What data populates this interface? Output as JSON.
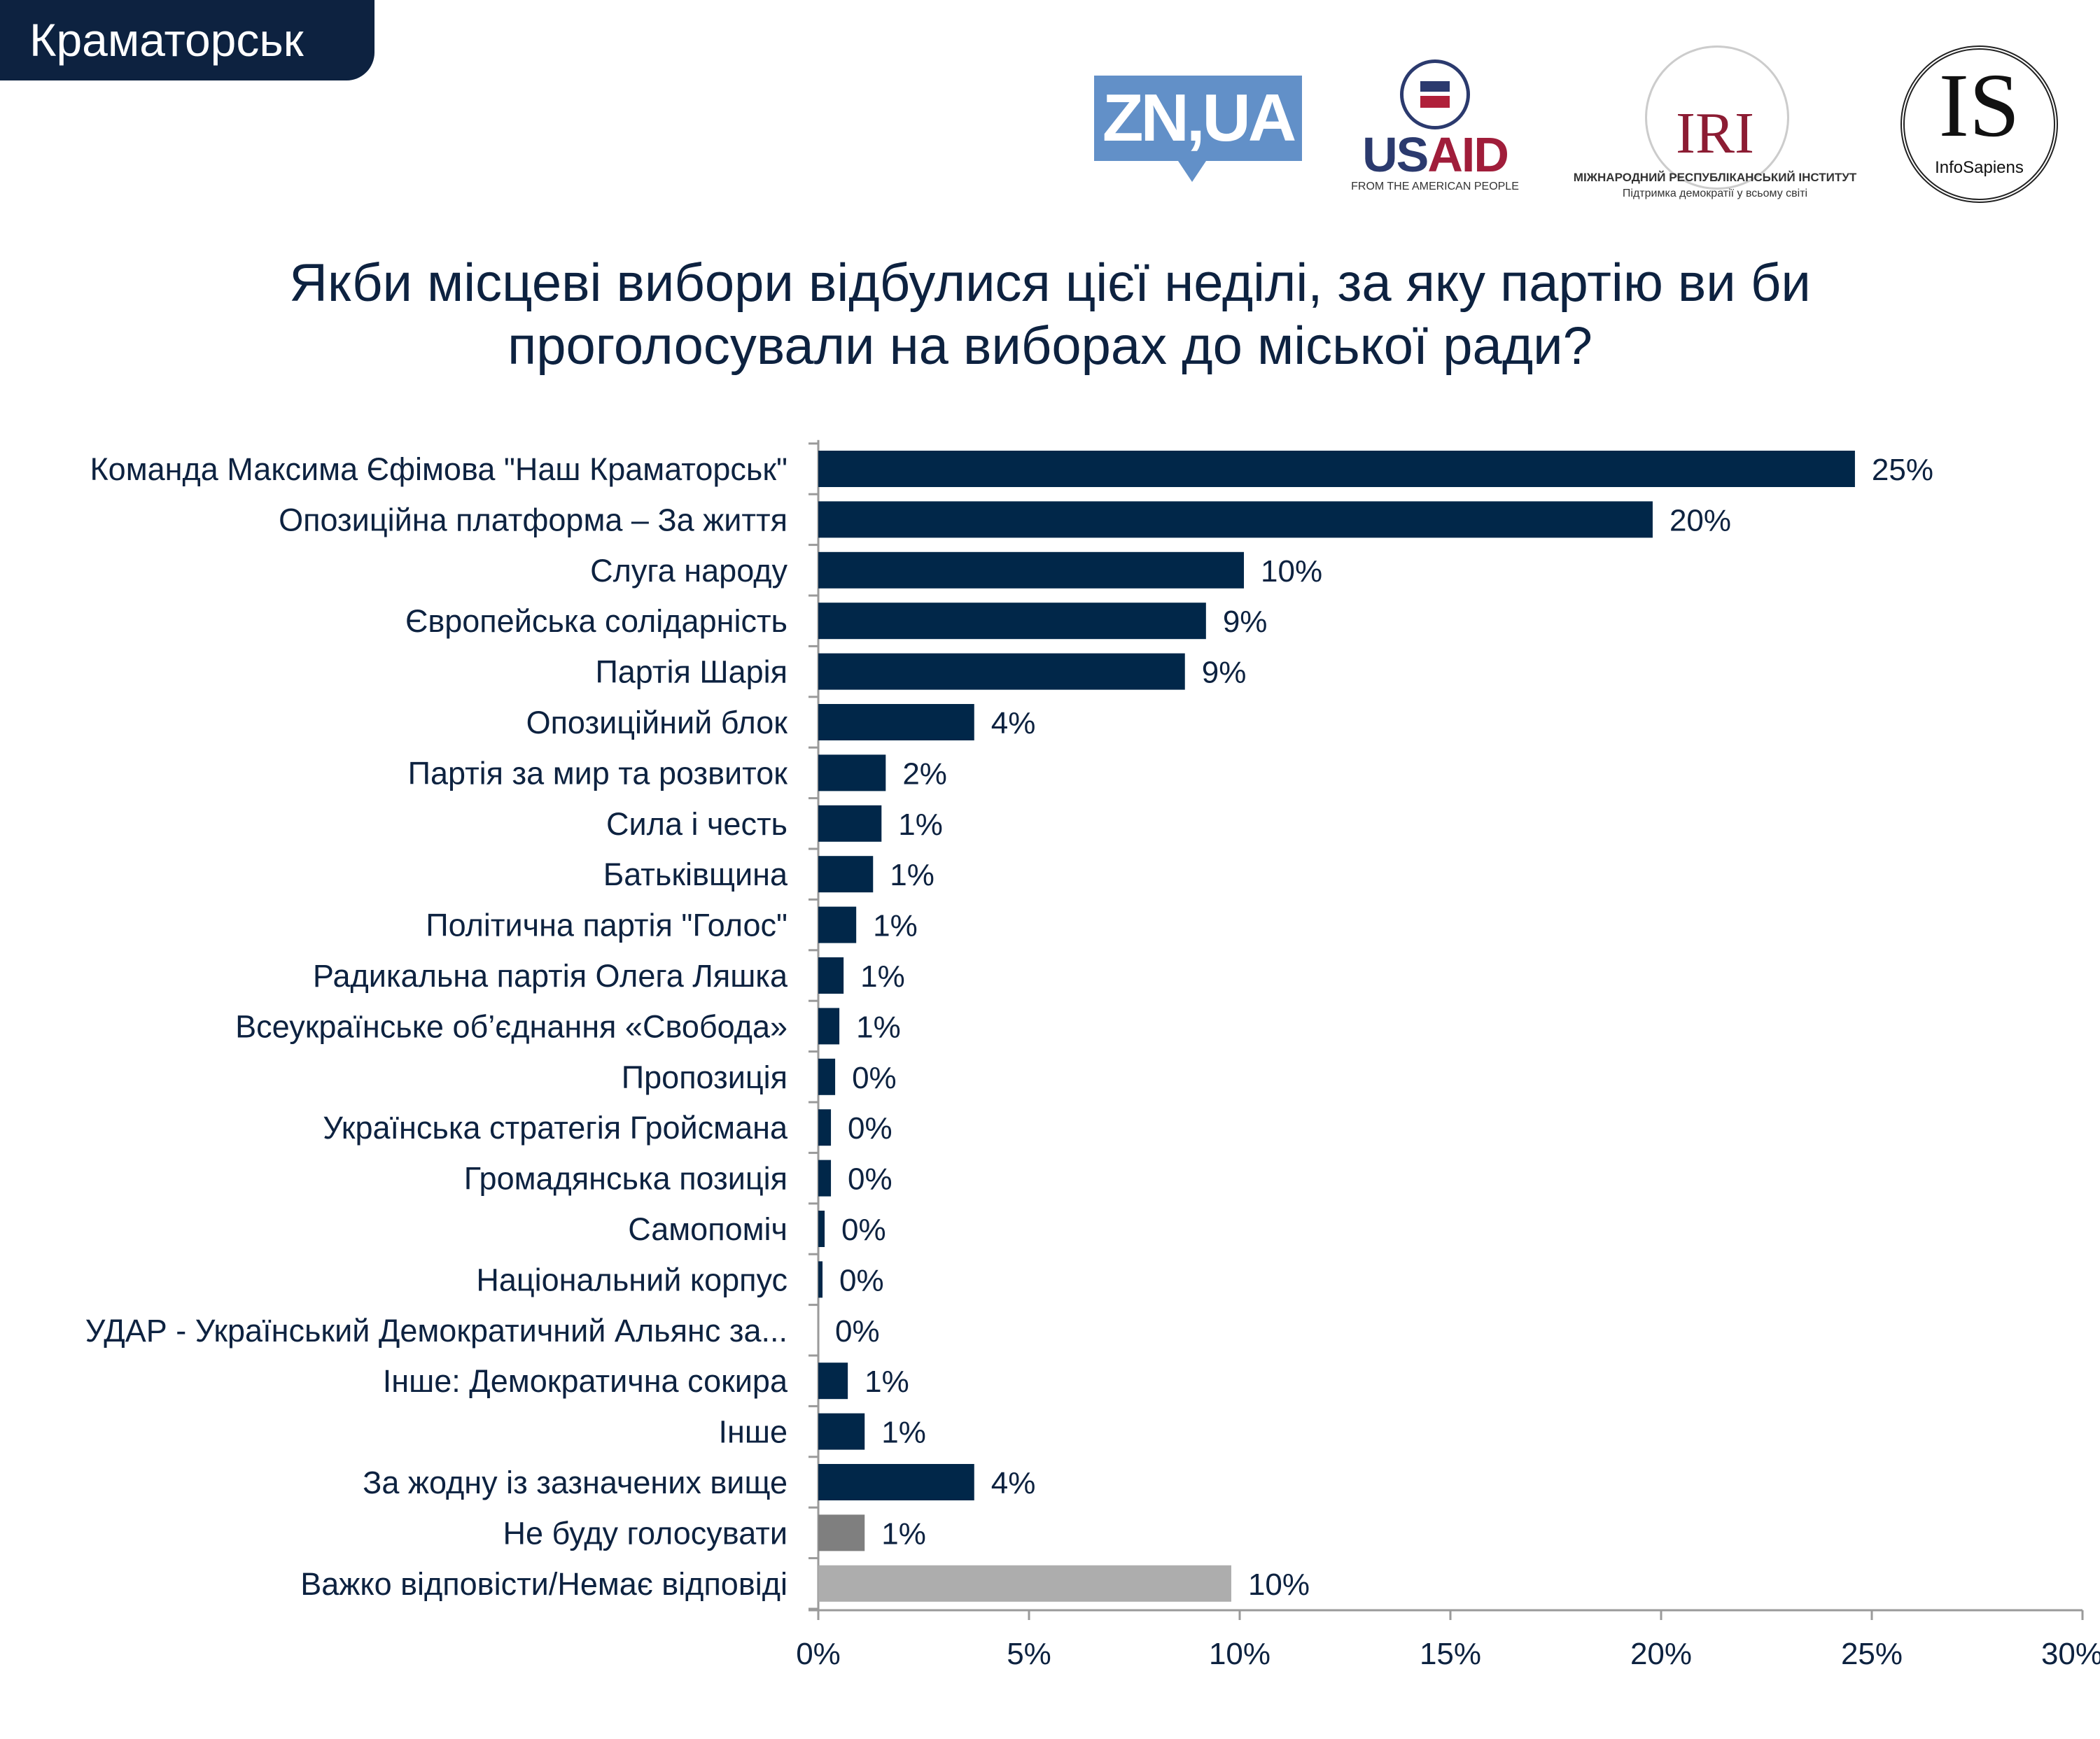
{
  "header": {
    "city": "Краматорськ"
  },
  "logos": {
    "zn": "ZN,UA",
    "usaid_us": "US",
    "usaid_aid": "AID",
    "usaid_sub": "FROM THE AMERICAN PEOPLE",
    "iri": "IRI",
    "iri_sub1": "МІЖНАРОДНИЙ РЕСПУБЛІКАНСЬКИЙ ІНСТИТУТ",
    "iri_sub2": "Підтримка демократії у всьому світі",
    "is": "IS",
    "is_sub": "InfoSapiens"
  },
  "question": {
    "line1": "Якби місцеві вибори відбулися цієї неділі, за яку партію ви би",
    "line2": "проголосували на виборах до міської ради?"
  },
  "chart_data": {
    "type": "bar",
    "orientation": "horizontal",
    "title": "Якби місцеві вибори відбулися цієї неділі, за яку партію ви би проголосували на виборах до міської ради?",
    "categories": [
      "Команда Максима Єфімова \"Наш Краматорськ\"",
      "Опозиційна платформа – За життя",
      "Слуга народу",
      "Європейська солідарність",
      "Партія Шарія",
      "Опозиційний блок",
      "Партія за мир та розвиток",
      "Сила і честь",
      "Батьківщина",
      "Політична партія \"Голос\"",
      "Радикальна партія Олега Ляшка",
      "Всеукраїнське об’єднання «Свобода»",
      "Пропозиція",
      "Українська стратегія Гройсмана",
      "Громадянська позиція",
      "Самопоміч",
      "Національний корпус",
      "УДАР - Український Демократичний Альянс за...",
      "Інше: Демократична сокира",
      "Інше",
      "За жодну із зазначених вище",
      "Не буду голосувати",
      "Важко відповісти/Немає відповіді"
    ],
    "values": [
      24.6,
      19.8,
      10.1,
      9.2,
      8.7,
      3.7,
      1.6,
      1.5,
      1.3,
      0.9,
      0.6,
      0.5,
      0.4,
      0.3,
      0.3,
      0.15,
      0.1,
      0,
      0.7,
      1.1,
      3.7,
      1.1,
      9.8
    ],
    "data_labels": [
      "25%",
      "20%",
      "10%",
      "9%",
      "9%",
      "4%",
      "2%",
      "1%",
      "1%",
      "1%",
      "1%",
      "1%",
      "0%",
      "0%",
      "0%",
      "0%",
      "0%",
      "0%",
      "1%",
      "1%",
      "4%",
      "1%",
      "10%"
    ],
    "bar_colors": [
      "#012749",
      "#012749",
      "#012749",
      "#012749",
      "#012749",
      "#012749",
      "#012749",
      "#012749",
      "#012749",
      "#012749",
      "#012749",
      "#012749",
      "#012749",
      "#012749",
      "#012749",
      "#012749",
      "#012749",
      "#012749",
      "#012749",
      "#012749",
      "#012749",
      "#7f7f7f",
      "#adadad"
    ],
    "xlim": [
      0,
      30
    ],
    "xticks": [
      0,
      5,
      10,
      15,
      20,
      25,
      30
    ],
    "xtick_labels": [
      "0%",
      "5%",
      "10%",
      "15%",
      "20%",
      "25%",
      "30%"
    ],
    "grid": false,
    "legend": "none",
    "text_color": "#0d2240"
  }
}
